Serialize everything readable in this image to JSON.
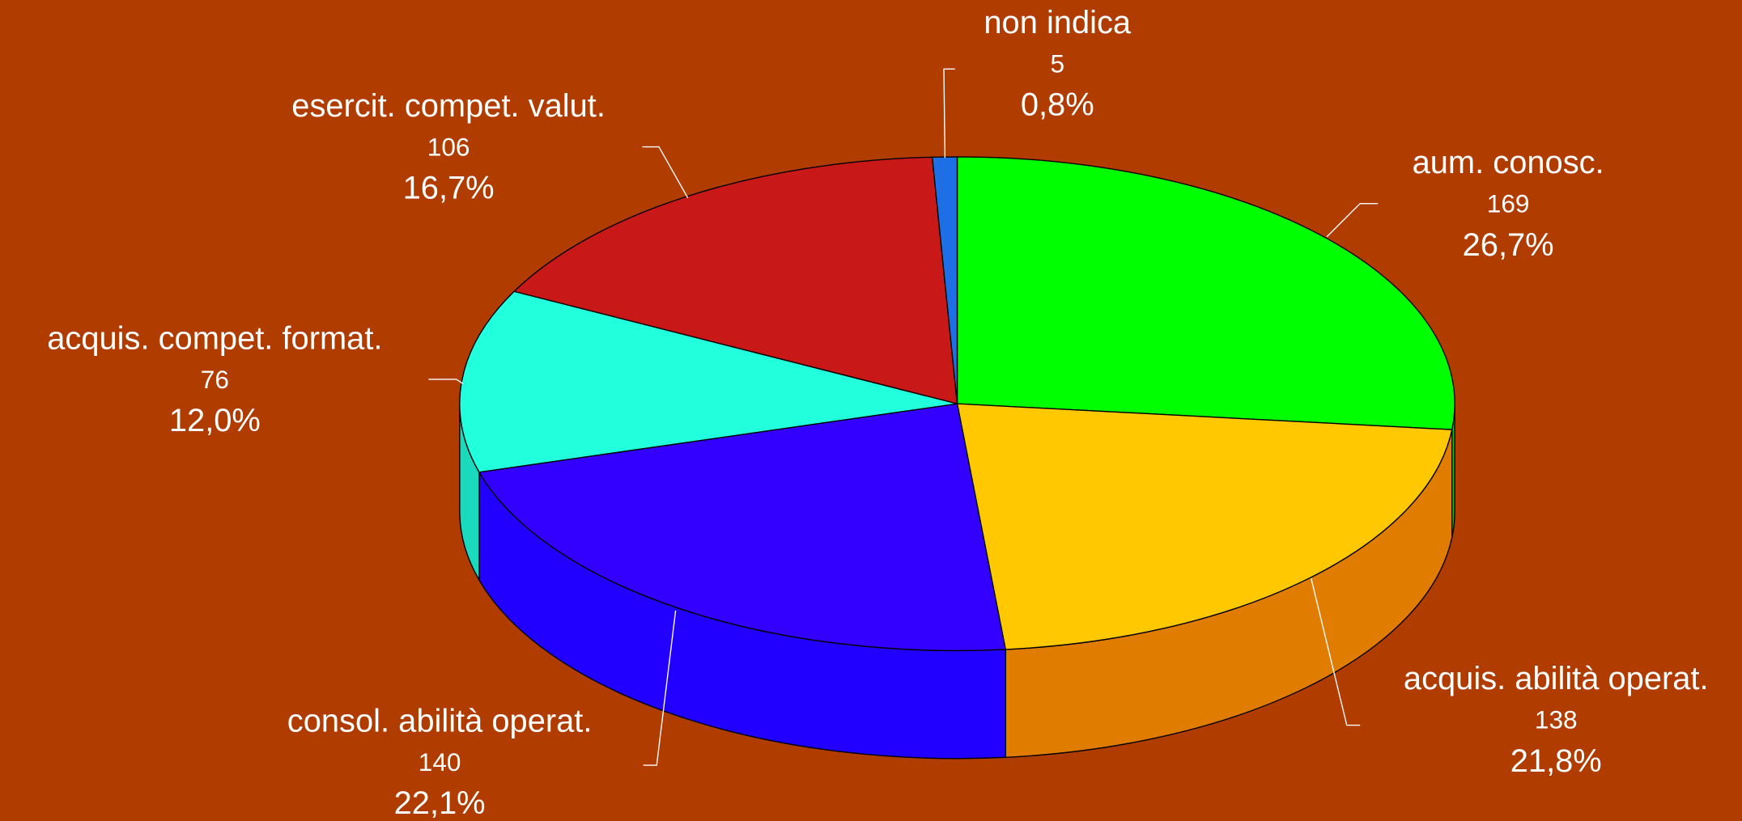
{
  "chart_data": {
    "type": "pie3d",
    "categories": [
      "aum. conosc.",
      "acquis. abilità operat.",
      "consol. abilità operat.",
      "acquis. compet. format.",
      "esercit. compet. valut.",
      "non indica"
    ],
    "counts": [
      169,
      138,
      140,
      76,
      106,
      5
    ],
    "values": [
      26.7,
      21.8,
      22.1,
      12.0,
      16.7,
      0.8
    ],
    "value_labels": [
      "26,7%",
      "21,8%",
      "22,1%",
      "12,0%",
      "16,7%",
      "0,8%"
    ],
    "colors": [
      "#00ff00",
      "#ffc800",
      "#3300ff",
      "#22ffdd",
      "#c81818",
      "#1e6ee6"
    ],
    "side_colors": [
      "#00cc00",
      "#e07c00",
      "#2200ff",
      "#1ad9bd",
      "#9e1010",
      "#1858c0"
    ]
  }
}
